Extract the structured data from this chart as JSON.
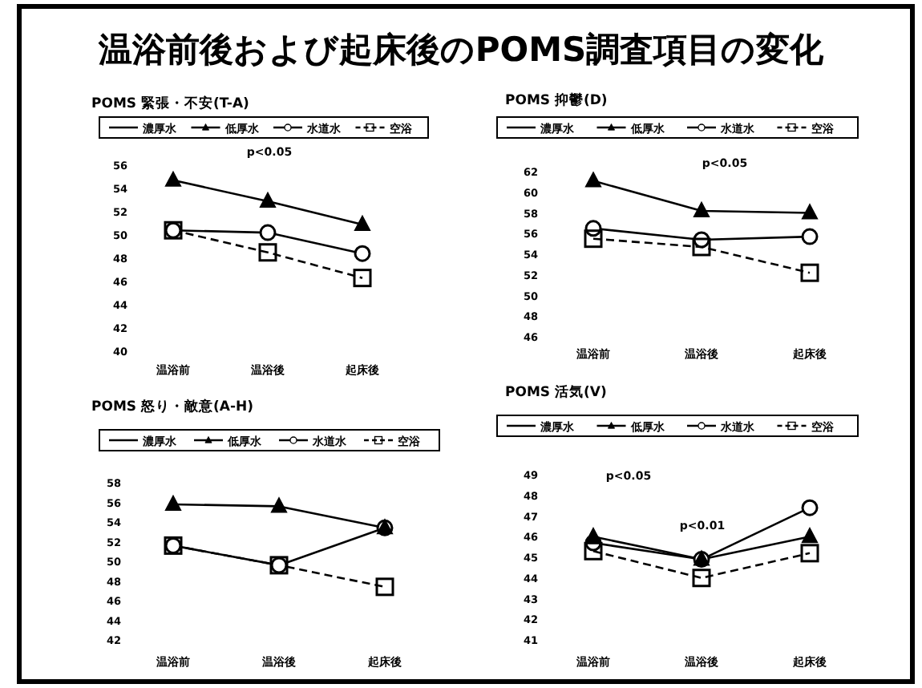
{
  "chart_data": [
    {
      "type": "other",
      "title": "温浴前後および起床後のPOMS調査項目の変化"
    },
    {
      "type": "line",
      "title": "POMS 緊張・不安(T-A)",
      "categories": [
        "温浴前",
        "温浴後",
        "起床後"
      ],
      "ylim": [
        40,
        56
      ],
      "yticks": [
        40,
        42,
        44,
        46,
        48,
        50,
        52,
        54,
        56
      ],
      "legend": "top",
      "grid": false,
      "annotations": [
        "p<0.05"
      ],
      "series": [
        {
          "name": "濃厚水",
          "color": "#000000",
          "marker": "none",
          "line_style": "solid",
          "values": [
            null,
            null,
            null
          ]
        },
        {
          "name": "低厚水",
          "color": "#000000",
          "marker": "triangle",
          "line_style": "solid",
          "values": [
            54.7,
            52.9,
            50.9
          ]
        },
        {
          "name": "水道水",
          "color": "#000000",
          "marker": "circle",
          "line_style": "solid",
          "values": [
            50.4,
            50.2,
            48.4
          ]
        },
        {
          "name": "空浴",
          "color": "#000000",
          "marker": "square",
          "line_style": "dashed",
          "values": [
            50.4,
            48.5,
            46.3
          ]
        }
      ]
    },
    {
      "type": "line",
      "title": "POMS 抑鬱(D)",
      "categories": [
        "温浴前",
        "温浴後",
        "起床後"
      ],
      "ylim": [
        46,
        62
      ],
      "yticks": [
        46,
        48,
        50,
        52,
        54,
        56,
        58,
        60,
        62
      ],
      "legend": "top",
      "grid": false,
      "annotations": [
        "p<0.05"
      ],
      "series": [
        {
          "name": "濃厚水",
          "color": "#000000",
          "marker": "none",
          "line_style": "solid",
          "values": [
            null,
            null,
            null
          ]
        },
        {
          "name": "低厚水",
          "color": "#000000",
          "marker": "triangle",
          "line_style": "solid",
          "values": [
            61.1,
            58.2,
            58.0
          ]
        },
        {
          "name": "水道水",
          "color": "#000000",
          "marker": "circle",
          "line_style": "solid",
          "values": [
            56.5,
            55.4,
            55.7
          ]
        },
        {
          "name": "空浴",
          "color": "#000000",
          "marker": "square",
          "line_style": "dashed",
          "values": [
            55.5,
            54.7,
            52.2
          ]
        }
      ]
    },
    {
      "type": "line",
      "title": "POMS 怒り・敵意(A-H)",
      "categories": [
        "温浴前",
        "温浴後",
        "起床後"
      ],
      "ylim": [
        42,
        58
      ],
      "yticks": [
        42,
        44,
        46,
        48,
        50,
        52,
        54,
        56,
        58
      ],
      "legend": "top",
      "grid": false,
      "series": [
        {
          "name": "濃厚水",
          "color": "#000000",
          "marker": "none",
          "line_style": "solid",
          "values": [
            null,
            null,
            null
          ]
        },
        {
          "name": "低厚水",
          "color": "#000000",
          "marker": "triangle",
          "line_style": "solid",
          "values": [
            55.8,
            55.6,
            53.4
          ]
        },
        {
          "name": "水道水",
          "color": "#000000",
          "marker": "circle",
          "line_style": "solid",
          "values": [
            51.6,
            49.6,
            53.4
          ]
        },
        {
          "name": "空浴",
          "color": "#000000",
          "marker": "square",
          "line_style": "dashed",
          "values": [
            51.6,
            49.6,
            47.4
          ]
        }
      ]
    },
    {
      "type": "line",
      "title": "POMS 活気(V)",
      "categories": [
        "温浴前",
        "温浴後",
        "起床後"
      ],
      "ylim": [
        41,
        49
      ],
      "yticks": [
        41,
        42,
        43,
        44,
        45,
        46,
        47,
        48,
        49
      ],
      "legend": "top",
      "grid": false,
      "annotations": [
        "p<0.05",
        "p<0.01"
      ],
      "series": [
        {
          "name": "濃厚水",
          "color": "#000000",
          "marker": "none",
          "line_style": "solid",
          "values": [
            null,
            null,
            null
          ]
        },
        {
          "name": "低厚水",
          "color": "#000000",
          "marker": "triangle",
          "line_style": "solid",
          "values": [
            46.0,
            44.9,
            46.0
          ]
        },
        {
          "name": "水道水",
          "color": "#000000",
          "marker": "circle",
          "line_style": "solid",
          "values": [
            45.7,
            44.9,
            47.4
          ]
        },
        {
          "name": "空浴",
          "color": "#000000",
          "marker": "square",
          "line_style": "dashed",
          "values": [
            45.3,
            44.0,
            45.2
          ]
        }
      ]
    }
  ]
}
